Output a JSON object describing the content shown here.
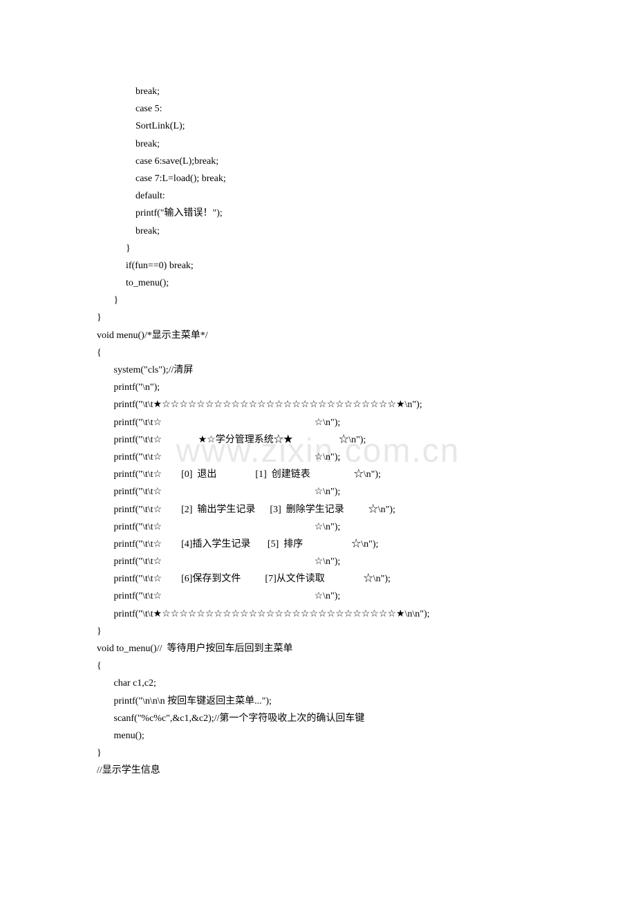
{
  "watermark": "www.zixin.com.cn",
  "lines": [
    "",
    "                break;",
    "                case 5:",
    "                SortLink(L);",
    "",
    "                break;",
    "                case 6:save(L);break;",
    "                case 7:L=load(); break;",
    "",
    "                default:",
    "                printf(\"输入错误！\");",
    "                break;",
    "            }",
    "            if(fun==0) break;",
    "            to_menu();",
    "       }",
    "}",
    "",
    "void menu()/*显示主菜单*/",
    "{",
    "       system(\"cls\");//清屏",
    "       printf(\"\\n\");",
    "       printf(\"\\t\\t★☆☆☆☆☆☆☆☆☆☆☆☆☆☆☆☆☆☆☆☆☆☆☆☆☆☆☆★\\n\");",
    "       printf(\"\\t\\t☆                                                               ☆\\n\");",
    "       printf(\"\\t\\t☆               ★☆学分管理系统☆★                   ☆\\n\");",
    "       printf(\"\\t\\t☆                                                               ☆\\n\");",
    "       printf(\"\\t\\t☆        [0]  退出                [1]  创建链表                  ☆\\n\");",
    "       printf(\"\\t\\t☆                                                               ☆\\n\");",
    "       printf(\"\\t\\t☆        [2]  输出学生记录      [3]  删除学生记录          ☆\\n\");",
    "       printf(\"\\t\\t☆                                                               ☆\\n\");",
    "       printf(\"\\t\\t☆        [4]插入学生记录       [5]  排序                    ☆\\n\");",
    "       printf(\"\\t\\t☆                                                               ☆\\n\");",
    "       printf(\"\\t\\t☆        [6]保存到文件          [7]从文件读取                ☆\\n\");",
    "       printf(\"\\t\\t☆                                                               ☆\\n\");",
    "       printf(\"\\t\\t★☆☆☆☆☆☆☆☆☆☆☆☆☆☆☆☆☆☆☆☆☆☆☆☆☆☆☆★\\n\\n\");",
    "}",
    "void to_menu()//  等待用户按回车后回到主菜单",
    "{",
    "       char c1,c2;",
    "       printf(\"\\n\\n\\n 按回车键返回主菜单...\");",
    "       scanf(\"%c%c\",&c1,&c2);//第一个字符吸收上次的确认回车键",
    "       menu();",
    "}",
    "",
    "//显示学生信息"
  ]
}
